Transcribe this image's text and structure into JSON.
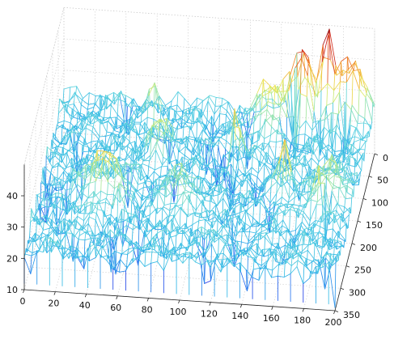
{
  "chart_data": {
    "type": "surface",
    "title": "",
    "xlabel": "",
    "ylabel": "",
    "zlabel": "",
    "x_ticks": [
      0,
      20,
      40,
      60,
      80,
      100,
      120,
      140,
      160,
      180,
      200
    ],
    "y_ticks": [
      0,
      50,
      100,
      150,
      200,
      250,
      300,
      350
    ],
    "z_ticks": [
      10,
      20,
      30,
      40
    ],
    "xlim": [
      0,
      200
    ],
    "ylim": [
      0,
      350
    ],
    "zlim": [
      10,
      50
    ],
    "grid": true,
    "mesh_rows": 46,
    "mesh_cols": 50,
    "baseline_z": 22,
    "noise_amplitude": 3,
    "colormap": [
      "#1e1ee0",
      "#2a6cf0",
      "#31b7e6",
      "#5fd3e0",
      "#9fe6a6",
      "#e8ea5a",
      "#f4b13a",
      "#e95f1f",
      "#c2121f",
      "#800000"
    ],
    "peaks": [
      {
        "x": 155,
        "y": 20,
        "z_max": 46,
        "spread_x": 6,
        "spread_y": 14
      },
      {
        "x": 170,
        "y": 10,
        "z_max": 50,
        "spread_x": 3,
        "spread_y": 10
      },
      {
        "x": 185,
        "y": 15,
        "z_max": 40,
        "spread_x": 10,
        "spread_y": 18
      },
      {
        "x": 135,
        "y": 35,
        "z_max": 36,
        "spread_x": 8,
        "spread_y": 20
      },
      {
        "x": 120,
        "y": 120,
        "z_max": 42,
        "spread_x": 2,
        "spread_y": 10
      },
      {
        "x": 70,
        "y": 110,
        "z_max": 32,
        "spread_x": 6,
        "spread_y": 15
      },
      {
        "x": 40,
        "y": 210,
        "z_max": 33,
        "spread_x": 10,
        "spread_y": 20
      },
      {
        "x": 55,
        "y": 245,
        "z_max": 36,
        "spread_x": 2,
        "spread_y": 6
      },
      {
        "x": 90,
        "y": 210,
        "z_max": 30,
        "spread_x": 8,
        "spread_y": 20
      },
      {
        "x": 155,
        "y": 180,
        "z_max": 40,
        "spread_x": 3,
        "spread_y": 10
      },
      {
        "x": 180,
        "y": 215,
        "z_max": 36,
        "spread_x": 4,
        "spread_y": 10
      },
      {
        "x": 185,
        "y": 175,
        "z_max": 32,
        "spread_x": 8,
        "spread_y": 18
      },
      {
        "x": 60,
        "y": 35,
        "z_max": 34,
        "spread_x": 2,
        "spread_y": 6
      }
    ]
  }
}
